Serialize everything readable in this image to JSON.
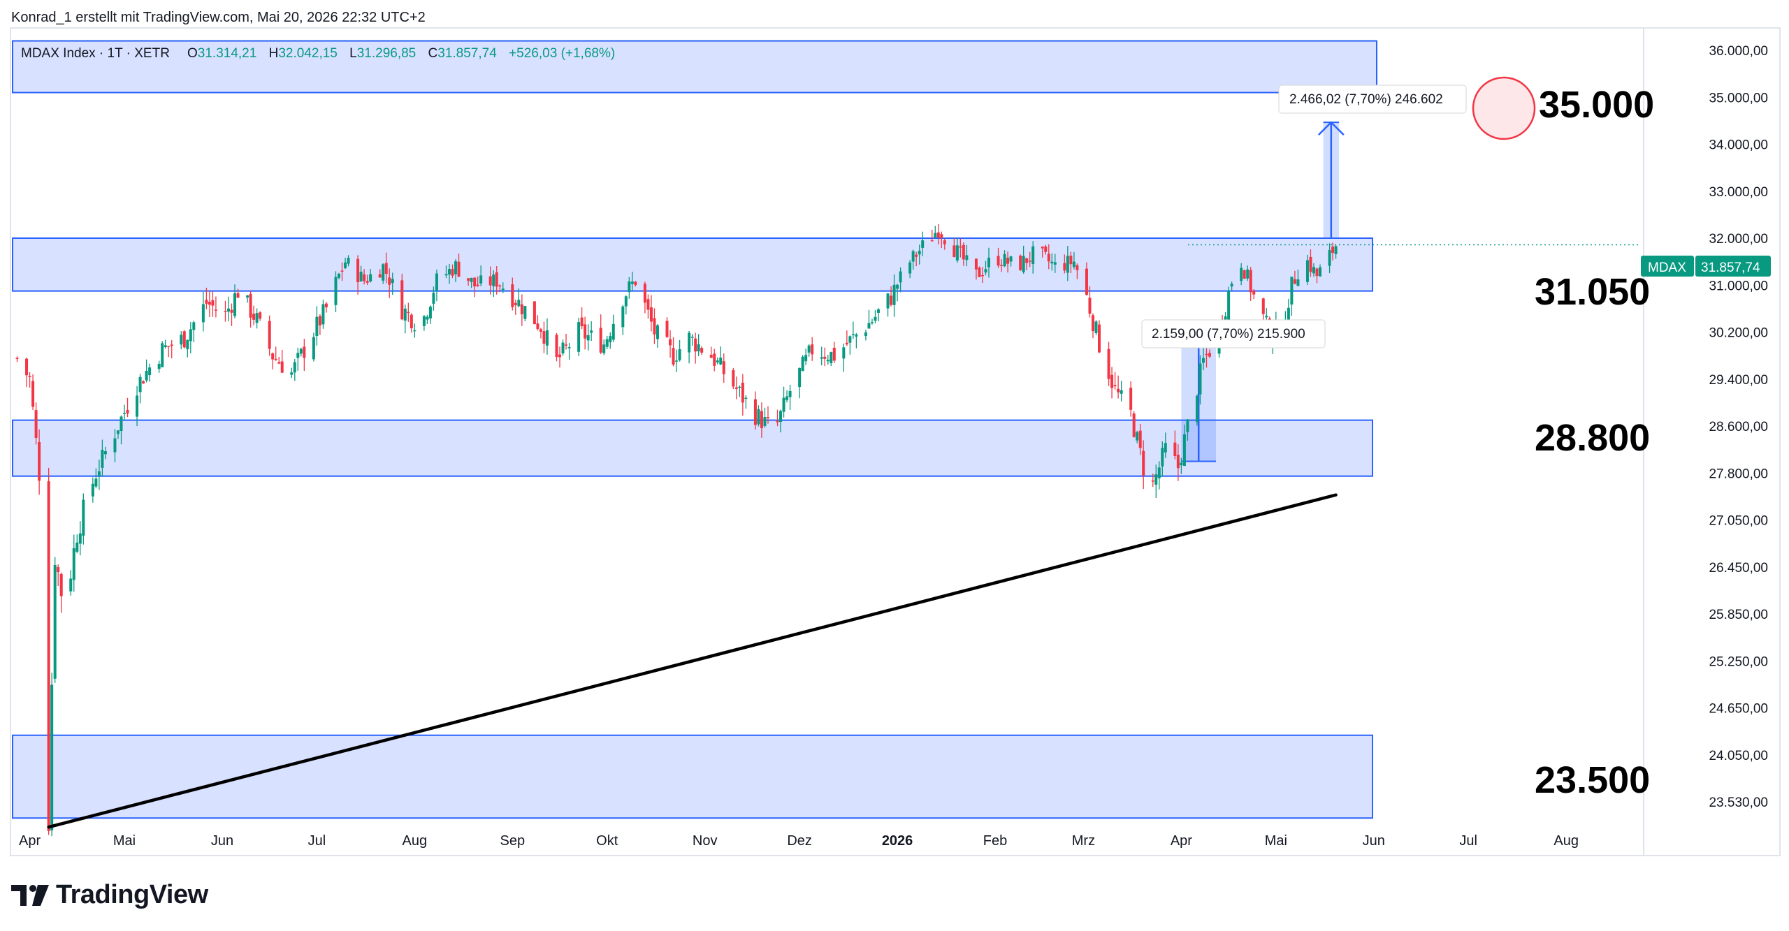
{
  "header": {
    "attribution": "Konrad_1 erstellt mit TradingView.com, Mai 20, 2026 22:32 UTC+2"
  },
  "legend": {
    "symbol": "MDAX Index · 1T · XETR",
    "o_label": "O",
    "o_value": "31.314,21",
    "h_label": "H",
    "h_value": "32.042,15",
    "l_label": "L",
    "l_value": "31.296,85",
    "c_label": "C",
    "c_value": "31.857,74",
    "change": "+526,03 (+1,68%)"
  },
  "price_tag": {
    "symbol": "MDAX",
    "value": "31.857,74"
  },
  "annotations": {
    "level_35000": "35.000",
    "level_31050": "31.050",
    "level_28800": "28.800",
    "level_23500": "23.500",
    "measure_upper": "2.466,02 (7,70%) 246.602",
    "measure_lower": "2.159,00 (7,70%) 215.900"
  },
  "footer": {
    "logo_text": "TradingView"
  },
  "colors": {
    "up": "#089981",
    "down": "#f23645",
    "zone_fill": "#d1dcff",
    "zone_border": "#2962ff",
    "trendline": "#000000",
    "circle_stroke": "#f23645",
    "circle_fill": "#fde7e9",
    "price_tag_bg": "#089981"
  },
  "chart_data": {
    "type": "candlestick",
    "title": "MDAX Index · 1T · XETR",
    "y_ticks": [
      "36.000,00",
      "35.000,00",
      "34.000,00",
      "33.000,00",
      "32.000,00",
      "31.000,00",
      "30.200,00",
      "29.400,00",
      "28.600,00",
      "27.800,00",
      "27.050,00",
      "26.450,00",
      "25.850,00",
      "25.250,00",
      "24.650,00",
      "24.050,00",
      "23.530,00"
    ],
    "x_ticks": [
      "Apr",
      "Mai",
      "Jun",
      "Jul",
      "Aug",
      "Sep",
      "Okt",
      "Nov",
      "Dez",
      "2026",
      "Feb",
      "Mrz",
      "Apr",
      "Mai",
      "Jun",
      "Jul",
      "Aug"
    ],
    "x_range": [
      "2025-03-27",
      "2026-08-24"
    ],
    "grid": false,
    "zones": [
      {
        "from": 35100,
        "to": 36200
      },
      {
        "from": 30900,
        "to": 32000
      },
      {
        "from": 27750,
        "to": 28700
      },
      {
        "from": 23350,
        "to": 24300
      }
    ],
    "trendline": [
      {
        "date": "2025-04-07",
        "value": 23250
      },
      {
        "date": "2026-05-20",
        "value": 27450
      }
    ],
    "measurements": [
      {
        "date_from": "2026-05-16",
        "date_to": "2026-05-21",
        "from": 32000,
        "to": 34466
      },
      {
        "date_from": "2026-04-01",
        "date_to": "2026-04-12",
        "from": 28000,
        "to": 30159
      }
    ],
    "series_points": [
      [
        "2025-03-28",
        29750
      ],
      [
        "2025-04-01",
        29400
      ],
      [
        "2025-04-04",
        27800
      ],
      [
        "2025-04-07",
        23350
      ],
      [
        "2025-04-09",
        26600
      ],
      [
        "2025-04-12",
        25900
      ],
      [
        "2025-04-16",
        26900
      ],
      [
        "2025-04-22",
        27800
      ],
      [
        "2025-04-28",
        28500
      ],
      [
        "2025-05-05",
        29300
      ],
      [
        "2025-05-13",
        29900
      ],
      [
        "2025-05-20",
        30100
      ],
      [
        "2025-05-27",
        30700
      ],
      [
        "2025-06-02",
        30500
      ],
      [
        "2025-06-06",
        30900
      ],
      [
        "2025-06-12",
        30400
      ],
      [
        "2025-06-17",
        29800
      ],
      [
        "2025-06-23",
        29500
      ],
      [
        "2025-06-30",
        30200
      ],
      [
        "2025-07-04",
        30600
      ],
      [
        "2025-07-10",
        31500
      ],
      [
        "2025-07-16",
        31100
      ],
      [
        "2025-07-22",
        31400
      ],
      [
        "2025-07-28",
        30600
      ],
      [
        "2025-08-03",
        30300
      ],
      [
        "2025-08-08",
        31100
      ],
      [
        "2025-08-14",
        31400
      ],
      [
        "2025-08-20",
        31000
      ],
      [
        "2025-08-27",
        31100
      ],
      [
        "2025-09-03",
        30700
      ],
      [
        "2025-09-10",
        30300
      ],
      [
        "2025-09-15",
        29700
      ],
      [
        "2025-09-22",
        30200
      ],
      [
        "2025-09-30",
        30000
      ],
      [
        "2025-10-06",
        30800
      ],
      [
        "2025-10-10",
        31100
      ],
      [
        "2025-10-16",
        30200
      ],
      [
        "2025-10-22",
        29800
      ],
      [
        "2025-10-27",
        30100
      ],
      [
        "2025-11-03",
        29800
      ],
      [
        "2025-11-10",
        29300
      ],
      [
        "2025-11-17",
        28800
      ],
      [
        "2025-11-23",
        28500
      ],
      [
        "2025-11-28",
        29200
      ],
      [
        "2025-12-05",
        29900
      ],
      [
        "2025-12-12",
        29800
      ],
      [
        "2025-12-18",
        30100
      ],
      [
        "2025-12-24",
        30400
      ],
      [
        "2025-12-30",
        30800
      ],
      [
        "2026-01-05",
        31500
      ],
      [
        "2026-01-10",
        31900
      ],
      [
        "2026-01-14",
        32200
      ],
      [
        "2026-01-20",
        31700
      ],
      [
        "2026-01-26",
        31200
      ],
      [
        "2026-02-01",
        31600
      ],
      [
        "2026-02-08",
        31400
      ],
      [
        "2026-02-14",
        31700
      ],
      [
        "2026-02-20",
        31400
      ],
      [
        "2026-02-26",
        31500
      ],
      [
        "2026-03-02",
        30800
      ],
      [
        "2026-03-06",
        30000
      ],
      [
        "2026-03-11",
        29200
      ],
      [
        "2026-03-16",
        28800
      ],
      [
        "2026-03-20",
        27900
      ],
      [
        "2026-03-23",
        27600
      ],
      [
        "2026-03-27",
        28200
      ],
      [
        "2026-03-31",
        27900
      ],
      [
        "2026-04-03",
        28600
      ],
      [
        "2026-04-08",
        29700
      ],
      [
        "2026-04-13",
        30200
      ],
      [
        "2026-04-17",
        31100
      ],
      [
        "2026-04-20",
        31500
      ],
      [
        "2026-04-24",
        30800
      ],
      [
        "2026-04-28",
        30300
      ],
      [
        "2026-05-02",
        30100
      ],
      [
        "2026-05-06",
        31000
      ],
      [
        "2026-05-10",
        31600
      ],
      [
        "2026-05-14",
        31200
      ],
      [
        "2026-05-17",
        31500
      ],
      [
        "2026-05-20",
        31858
      ]
    ]
  }
}
